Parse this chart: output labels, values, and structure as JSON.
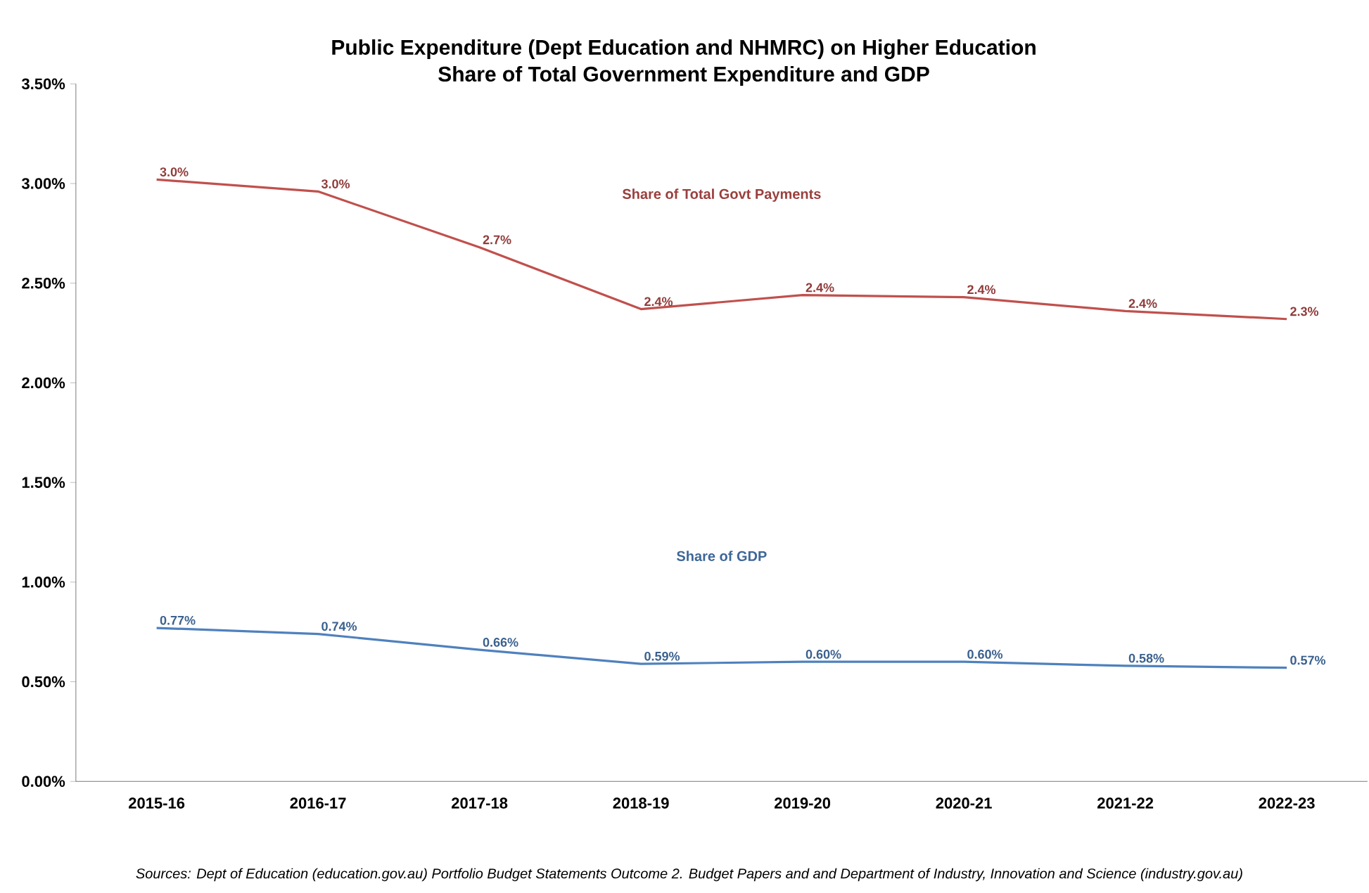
{
  "chart_data": {
    "type": "line",
    "title": "Public Expenditure (Dept Education and NHMRC) on Higher Education",
    "subtitle": "Share of Total Government Expenditure and GDP",
    "categories": [
      "2015-16",
      "2016-17",
      "2017-18",
      "2018-19",
      "2019-20",
      "2020-21",
      "2021-22",
      "2022-23"
    ],
    "series": [
      {
        "name": "Share of Total Govt Payments",
        "color": "#c0504d",
        "values": [
          3.02,
          2.96,
          2.68,
          2.37,
          2.44,
          2.43,
          2.36,
          2.32
        ],
        "value_labels": [
          "3.0%",
          "3.0%",
          "2.7%",
          "2.4%",
          "2.4%",
          "2.4%",
          "2.4%",
          "2.3%"
        ]
      },
      {
        "name": "Share of GDP",
        "color": "#4f81bd",
        "values": [
          0.77,
          0.74,
          0.66,
          0.59,
          0.6,
          0.6,
          0.58,
          0.57
        ],
        "value_labels": [
          "0.77%",
          "0.74%",
          "0.66%",
          "0.59%",
          "0.60%",
          "0.60%",
          "0.58%",
          "0.57%"
        ]
      }
    ],
    "ylim": [
      0,
      3.5
    ],
    "yticks": [
      {
        "value": 0,
        "label": "0.00%"
      },
      {
        "value": 0.5,
        "label": "0.50%"
      },
      {
        "value": 1,
        "label": "1.00%"
      },
      {
        "value": 1.5,
        "label": "1.50%"
      },
      {
        "value": 2,
        "label": "2.00%"
      },
      {
        "value": 2.5,
        "label": "2.50%"
      },
      {
        "value": 3,
        "label": "3.00%"
      },
      {
        "value": 3.5,
        "label": "3.50%"
      }
    ],
    "grid": false,
    "legend": false,
    "marker": "none",
    "line_style": "solid",
    "annotations": [
      "Sources:  Dept of Education (education.gov.au) Portfolio Budget Statements Outcome 2. Budget Papers and and Department of Industry, Innovation and Science (industry.gov.au)"
    ]
  }
}
